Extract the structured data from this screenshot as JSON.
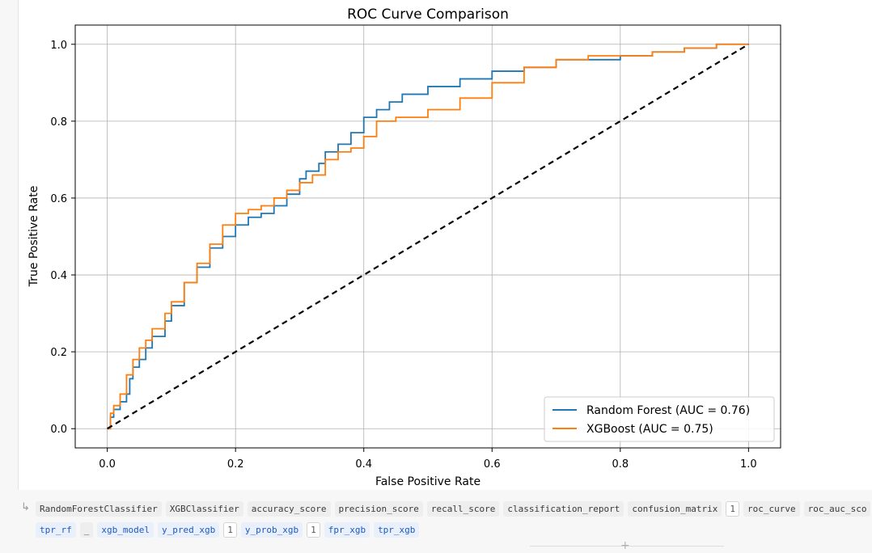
{
  "chart_data": {
    "type": "line",
    "title": "ROC Curve Comparison",
    "xlabel": "False Positive Rate",
    "ylabel": "True Positive Rate",
    "xlim": [
      -0.05,
      1.05
    ],
    "ylim": [
      -0.05,
      1.05
    ],
    "xticks": [
      "0.0",
      "0.2",
      "0.4",
      "0.6",
      "0.8",
      "1.0"
    ],
    "yticks": [
      "0.0",
      "0.2",
      "0.4",
      "0.6",
      "0.8",
      "1.0"
    ],
    "grid": true,
    "legend_position": "lower-right",
    "series": [
      {
        "name": "Random Forest (AUC = 0.76)",
        "color": "#1f77b4",
        "x": [
          0,
          0.005,
          0.01,
          0.02,
          0.03,
          0.035,
          0.04,
          0.05,
          0.06,
          0.07,
          0.09,
          0.1,
          0.12,
          0.14,
          0.16,
          0.18,
          0.2,
          0.22,
          0.24,
          0.26,
          0.28,
          0.3,
          0.31,
          0.33,
          0.34,
          0.36,
          0.38,
          0.4,
          0.42,
          0.44,
          0.46,
          0.5,
          0.55,
          0.6,
          0.65,
          0.7,
          0.75,
          0.8,
          0.85,
          0.9,
          0.95,
          1.0
        ],
        "y": [
          0,
          0.03,
          0.05,
          0.07,
          0.09,
          0.13,
          0.16,
          0.18,
          0.21,
          0.24,
          0.28,
          0.32,
          0.38,
          0.42,
          0.47,
          0.5,
          0.53,
          0.55,
          0.56,
          0.58,
          0.61,
          0.65,
          0.67,
          0.69,
          0.72,
          0.74,
          0.77,
          0.81,
          0.83,
          0.85,
          0.87,
          0.89,
          0.91,
          0.93,
          0.94,
          0.96,
          0.96,
          0.97,
          0.98,
          0.99,
          1.0,
          1.0
        ]
      },
      {
        "name": "XGBoost (AUC = 0.75)",
        "color": "#ff7f0e",
        "x": [
          0,
          0.005,
          0.01,
          0.02,
          0.03,
          0.04,
          0.05,
          0.06,
          0.07,
          0.09,
          0.1,
          0.12,
          0.14,
          0.16,
          0.18,
          0.2,
          0.22,
          0.24,
          0.26,
          0.28,
          0.3,
          0.32,
          0.34,
          0.36,
          0.38,
          0.4,
          0.42,
          0.45,
          0.5,
          0.55,
          0.6,
          0.65,
          0.7,
          0.75,
          0.8,
          0.85,
          0.9,
          0.95,
          1.0
        ],
        "y": [
          0,
          0.04,
          0.06,
          0.09,
          0.14,
          0.18,
          0.21,
          0.23,
          0.26,
          0.3,
          0.33,
          0.38,
          0.43,
          0.48,
          0.53,
          0.56,
          0.57,
          0.58,
          0.6,
          0.62,
          0.64,
          0.66,
          0.7,
          0.72,
          0.73,
          0.76,
          0.8,
          0.81,
          0.83,
          0.86,
          0.9,
          0.94,
          0.96,
          0.97,
          0.97,
          0.98,
          0.99,
          1.0,
          1.0
        ]
      },
      {
        "name": "",
        "color": "#000000",
        "dashed": true,
        "x": [
          0,
          1
        ],
        "y": [
          0,
          1
        ]
      }
    ]
  },
  "variables": {
    "row1": [
      "RandomForestClassifier",
      "XGBClassifier",
      "accuracy_score",
      "precision_score",
      "recall_score",
      "classification_report",
      "confusion_matrix",
      "1",
      "roc_curve",
      "roc_auc_sco"
    ],
    "row2": [
      "tpr_rf",
      "_",
      "xgb_model",
      "y_pred_xgb",
      "1",
      "y_prob_xgb",
      "1",
      "fpr_xgb",
      "tpr_xgb"
    ],
    "row1_kinds": [
      "plain",
      "plain",
      "plain",
      "plain",
      "plain",
      "plain",
      "plain",
      "count",
      "plain",
      "plain"
    ],
    "row2_kinds": [
      "link",
      "plain",
      "link",
      "link",
      "count",
      "link",
      "count",
      "link",
      "link"
    ]
  }
}
